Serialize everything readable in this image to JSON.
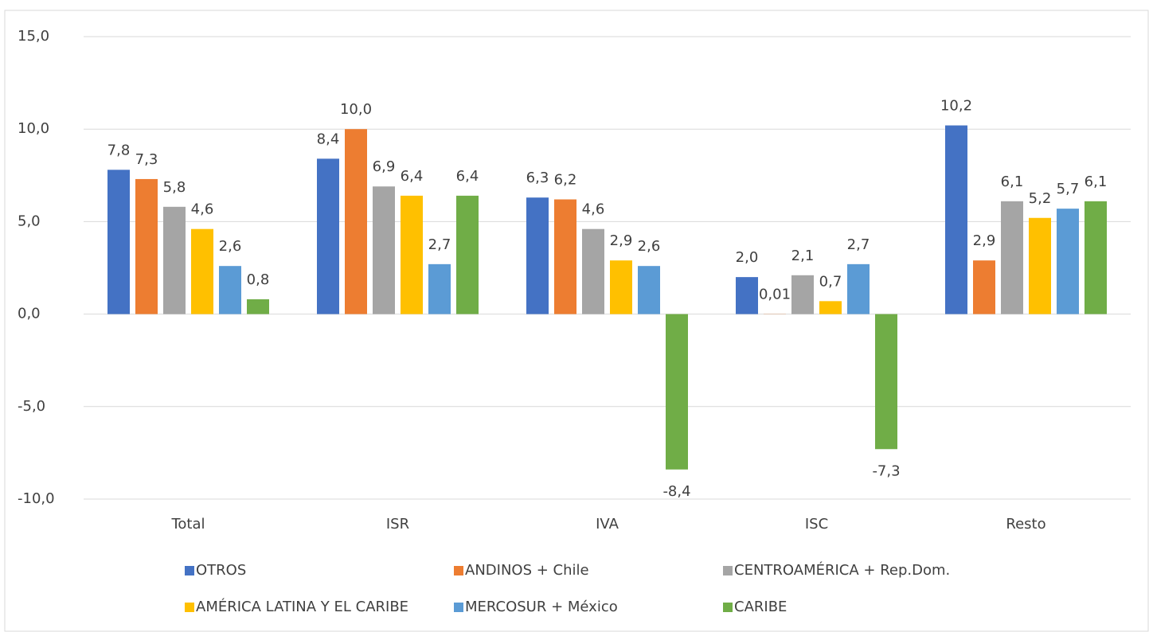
{
  "chart_data": {
    "type": "bar",
    "categories": [
      "Total",
      "ISR",
      "IVA",
      "ISC",
      "Resto"
    ],
    "series": [
      {
        "name": "OTROS",
        "color": "#4472c4",
        "values": [
          7.8,
          8.4,
          6.3,
          2.0,
          10.2
        ],
        "value_labels": [
          "7,8",
          "8,4",
          "6,3",
          "2,0",
          "10,2"
        ]
      },
      {
        "name": "ANDINOS + Chile",
        "color": "#ed7d31",
        "values": [
          7.3,
          10.0,
          6.2,
          0.01,
          2.9
        ],
        "value_labels": [
          "7,3",
          "10,0",
          "6,2",
          "0,01",
          "2,9"
        ]
      },
      {
        "name": "CENTROAMÉRICA + Rep.Dom.",
        "color": "#a5a5a5",
        "values": [
          5.8,
          6.9,
          4.6,
          2.1,
          6.1
        ],
        "value_labels": [
          "5,8",
          "6,9",
          "4,6",
          "2,1",
          "6,1"
        ]
      },
      {
        "name": "AMÉRICA LATINA Y EL CARIBE",
        "color": "#ffc000",
        "values": [
          4.6,
          6.4,
          2.9,
          0.7,
          5.2
        ],
        "value_labels": [
          "4,6",
          "6,4",
          "2,9",
          "0,7",
          "5,2"
        ]
      },
      {
        "name": "MERCOSUR + México",
        "color": "#5b9bd5",
        "values": [
          2.6,
          2.7,
          2.6,
          2.7,
          5.7
        ],
        "value_labels": [
          "2,6",
          "2,7",
          "2,6",
          "2,7",
          "5,7"
        ]
      },
      {
        "name": "CARIBE",
        "color": "#70ad47",
        "values": [
          0.8,
          6.4,
          -8.4,
          -7.3,
          6.1
        ],
        "value_labels": [
          "0,8",
          "6,4",
          "-8,4",
          "-7,3",
          "6,1"
        ]
      }
    ],
    "ylim": [
      -10,
      15
    ],
    "yticks": [
      {
        "value": -10,
        "label": "-10,0"
      },
      {
        "value": -5,
        "label": "-5,0"
      },
      {
        "value": 0,
        "label": "0,0"
      },
      {
        "value": 5,
        "label": "5,0"
      },
      {
        "value": 10,
        "label": "10,0"
      },
      {
        "value": 15,
        "label": "15,0"
      }
    ],
    "grid": true,
    "legend": "bottom",
    "negative_color": "#ff0000"
  }
}
